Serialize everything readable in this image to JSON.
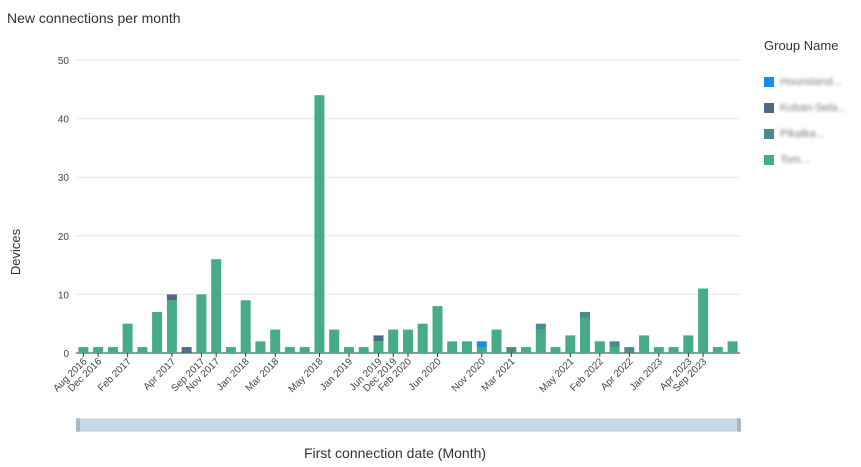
{
  "title": "New connections per month",
  "legend": {
    "title": "Group Name",
    "items": [
      {
        "label": "Hounsland...",
        "color": "#1a8cf0"
      },
      {
        "label": "Kuban-Sela...",
        "color": "#4e6a86"
      },
      {
        "label": "Pikalka...",
        "color": "#4a8a8a"
      },
      {
        "label": "Tom...",
        "color": "#46ab87"
      }
    ]
  },
  "chart_data": {
    "type": "bar",
    "stacked": true,
    "title": "New connections per month",
    "xlabel": "First connection date (Month)",
    "ylabel": "Devices",
    "ylim": [
      0,
      50
    ],
    "yticks": [
      0,
      10,
      20,
      30,
      40,
      50
    ],
    "grid": true,
    "legend_placement": "right",
    "x_tick_labels": [
      "Aug 2016",
      "Dec 2016",
      "Feb 2017",
      "Apr 2017",
      "Sep 2017",
      "Nov 2017",
      "Jan 2018",
      "Mar 2018",
      "May 2018",
      "Jan 2019",
      "Jun 2019",
      "Dec 2019",
      "Feb 2020",
      "Jun 2020",
      "Nov 2020",
      "Mar 2021",
      "May 2021",
      "Feb 2022",
      "Apr 2022",
      "Jan 2023",
      "Apr 2023",
      "Sep 2023"
    ],
    "series": [
      {
        "name": "Hounsland...",
        "color": "#1a8cf0",
        "values": [
          0,
          0,
          0,
          0,
          0,
          0,
          0,
          0,
          0,
          0,
          0,
          0,
          0,
          0,
          0,
          0,
          0,
          0,
          0,
          0,
          0,
          0,
          0,
          0,
          0,
          0,
          0,
          1,
          0,
          0,
          0,
          0,
          0,
          0,
          0,
          0,
          0,
          0,
          0,
          0,
          0,
          0,
          0,
          0
        ]
      },
      {
        "name": "Kuban-Sela...",
        "color": "#4e6a86",
        "values": [
          0,
          0,
          0,
          0,
          0,
          0,
          1,
          1,
          0,
          0,
          0,
          0,
          0,
          0,
          0,
          0,
          0,
          0,
          0,
          0,
          1,
          0,
          0,
          0,
          0,
          0,
          0,
          0,
          0,
          0,
          0,
          0,
          0,
          0,
          0,
          0,
          0,
          0,
          0,
          0,
          0,
          0,
          0,
          0
        ]
      },
      {
        "name": "Pikalka...",
        "color": "#4a8a8a",
        "values": [
          0,
          0,
          0,
          0,
          0,
          0,
          0,
          0,
          0,
          0,
          0,
          0,
          0,
          0,
          0,
          0,
          0,
          0,
          0,
          0,
          0,
          0,
          0,
          0,
          0,
          0,
          0,
          0,
          0,
          1,
          0,
          1,
          0,
          0,
          1,
          0,
          1,
          1,
          0,
          0,
          0,
          0,
          0,
          0
        ]
      },
      {
        "name": "Tom...",
        "color": "#46ab87",
        "values": [
          1,
          1,
          1,
          5,
          1,
          7,
          9,
          0,
          10,
          16,
          1,
          9,
          2,
          4,
          1,
          1,
          44,
          4,
          1,
          1,
          2,
          4,
          4,
          5,
          8,
          2,
          2,
          1,
          4,
          0,
          1,
          4,
          1,
          3,
          6,
          2,
          1,
          0,
          3,
          1,
          1,
          3,
          11,
          1
        ]
      }
    ],
    "extra_last_bar": 2
  }
}
